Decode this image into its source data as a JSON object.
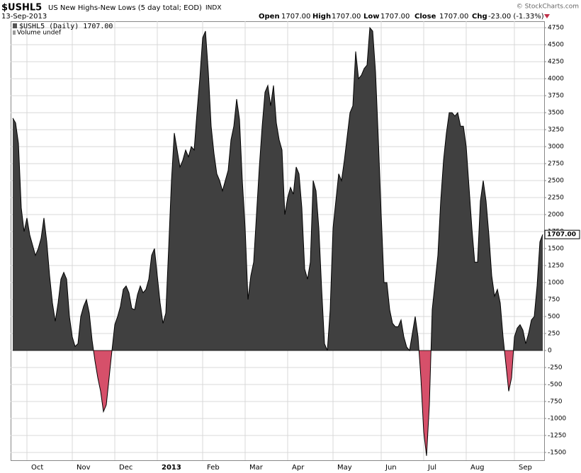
{
  "chart_data": {
    "type": "area",
    "symbol": "$USHL5",
    "title": "US New Highs-New Lows (5 day total; EOD)",
    "exchange": "INDX",
    "date": "13-Sep-2013",
    "watermark": "© StockCharts.com",
    "quote": {
      "open_label": "Open",
      "open": "1707.00",
      "high_label": "High",
      "high": "1707.00",
      "low_label": "Low",
      "low": "1707.00",
      "close_label": "Close",
      "close": "1707.00",
      "chg_label": "Chg",
      "chg": "-23.00 (-1.33%)"
    },
    "legend": "$USHL5 (Daily) 1707.00",
    "volume_note": "Volume undef",
    "last_label": "1707.00",
    "color": "#404040",
    "negative_color": "#d6506a",
    "grid": true,
    "ylim": [
      -1615,
      4845
    ],
    "yticks": [
      -1500,
      -1250,
      -1000,
      -750,
      -500,
      -250,
      0,
      250,
      500,
      750,
      1000,
      1250,
      1500,
      1750,
      2000,
      2250,
      2500,
      2750,
      3000,
      3250,
      3500,
      3750,
      4000,
      4250,
      4500,
      4750
    ],
    "categories": [
      null,
      null,
      null,
      null,
      null,
      "Oct",
      null,
      null,
      null,
      null,
      null,
      null,
      null,
      null,
      null,
      null,
      null,
      null,
      null,
      null,
      null,
      "Nov",
      null,
      null,
      null,
      null,
      null,
      null,
      null,
      null,
      null,
      null,
      null,
      null,
      null,
      null,
      "Dec",
      null,
      null,
      null,
      null,
      null,
      null,
      null,
      null,
      null,
      null,
      null,
      null,
      null,
      null,
      "2013",
      null,
      null,
      null,
      null,
      null,
      null,
      null,
      null,
      null,
      null,
      null,
      null,
      null,
      null,
      null,
      "Feb",
      null,
      null,
      null,
      null,
      null,
      null,
      null,
      null,
      null,
      null,
      null,
      null,
      null,
      null,
      "Mar",
      null,
      null,
      null,
      null,
      null,
      null,
      null,
      null,
      null,
      null,
      null,
      null,
      null,
      null,
      "Apr",
      null,
      null,
      null,
      null,
      null,
      null,
      null,
      null,
      null,
      null,
      null,
      null,
      null,
      null,
      null,
      "May",
      null,
      null,
      null,
      null,
      null,
      null,
      null,
      null,
      null,
      null,
      null,
      null,
      null,
      null,
      null,
      null,
      "Jun",
      null,
      null,
      null,
      null,
      null,
      null,
      null,
      null,
      null,
      null,
      null,
      null,
      null,
      null,
      "Jul",
      null,
      null,
      null,
      null,
      null,
      null,
      null,
      null,
      null,
      null,
      null,
      null,
      null,
      null,
      "Aug",
      null,
      null,
      null,
      null,
      null,
      null,
      null,
      null,
      null,
      null,
      null,
      null,
      null,
      null,
      null,
      null,
      "Sep",
      null,
      null,
      null,
      null,
      null,
      null,
      null,
      null,
      null,
      null
    ],
    "values": [
      3420,
      3350,
      3050,
      2100,
      1750,
      1950,
      1700,
      1550,
      1400,
      1500,
      1650,
      1950,
      1600,
      1100,
      700,
      430,
      700,
      1050,
      1150,
      1050,
      500,
      200,
      60,
      100,
      500,
      650,
      750,
      550,
      150,
      -150,
      -400,
      -600,
      -900,
      -800,
      -400,
      0,
      380,
      500,
      650,
      900,
      950,
      850,
      620,
      600,
      820,
      950,
      850,
      900,
      1050,
      1400,
      1500,
      1100,
      700,
      400,
      550,
      1500,
      2500,
      3200,
      2950,
      2700,
      2800,
      2950,
      2850,
      3000,
      2950,
      3500,
      4000,
      4600,
      4700,
      4100,
      3300,
      2900,
      2600,
      2500,
      2350,
      2500,
      2650,
      3100,
      3300,
      3700,
      3400,
      2500,
      1800,
      750,
      1100,
      1300,
      2000,
      2700,
      3300,
      3800,
      3900,
      3600,
      3900,
      3350,
      3100,
      2950,
      2000,
      2250,
      2400,
      2300,
      2700,
      2600,
      2100,
      1200,
      1050,
      1300,
      2500,
      2350,
      1800,
      900,
      100,
      0,
      600,
      1800,
      2200,
      2600,
      2500,
      2800,
      3150,
      3500,
      3600,
      4400,
      4000,
      4050,
      4150,
      4200,
      4750,
      4700,
      4100,
      3100,
      2000,
      1000,
      1000,
      600,
      400,
      350,
      350,
      450,
      200,
      50,
      0,
      250,
      500,
      200,
      -400,
      -1200,
      -1550,
      -800,
      600,
      1000,
      1400,
      2200,
      2800,
      3200,
      3500,
      3500,
      3450,
      3500,
      3300,
      3300,
      3000,
      2400,
      1800,
      1300,
      1300,
      2200,
      2500,
      2200,
      1700,
      1100,
      800,
      900,
      700,
      200,
      -200,
      -600,
      -400,
      200,
      330,
      380,
      300,
      100,
      250,
      450,
      500,
      950,
      1600,
      1707
    ]
  }
}
